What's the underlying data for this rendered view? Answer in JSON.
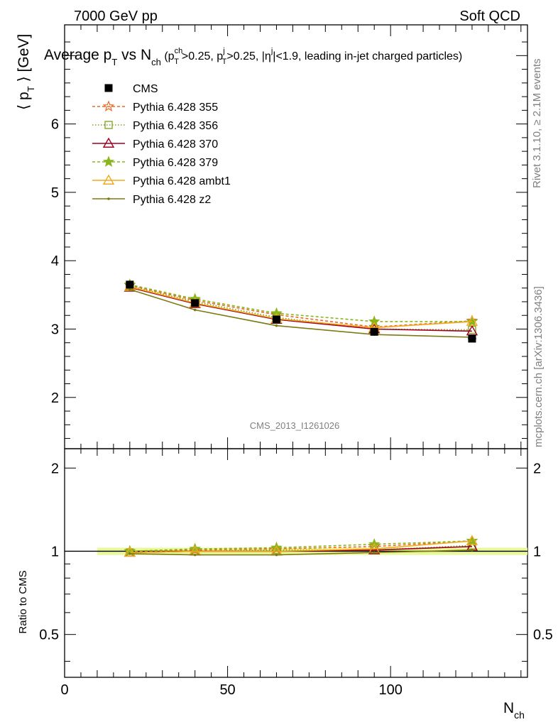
{
  "header": {
    "left": "7000 GeV pp",
    "right": "Soft QCD"
  },
  "title": {
    "main_a": "Average p",
    "main_a_sub": "T",
    "main_b": " vs N",
    "main_b_sub": "ch",
    "cuts_open": " (p",
    "cuts_ch_sup": "ch",
    "cuts_ch_sub": "T",
    "cuts_mid1": ">0.25, p",
    "cuts_j_sup": "j",
    "cuts_j_sub": "T",
    "cuts_mid2": ">0.25, |η",
    "cuts_eta_sup": "j",
    "cuts_end": "|<1.9, leading in-jet charged particles)"
  },
  "side_labels": {
    "rivet": "Rivet 3.1.10, ≥ 2.1M events",
    "mcplots": "mcplots.cern.ch [arXiv:1306.3436]"
  },
  "watermark": "CMS_2013_I1261026",
  "axes": {
    "ylabel_main": "⟨ p",
    "ylabel_main_sub": "T",
    "ylabel_main_end": " ⟩ [GeV]",
    "ylabel_ratio": "Ratio to CMS",
    "xlabel": "N",
    "xlabel_sub": "ch"
  },
  "chart_data": [
    {
      "type": "line",
      "panel": "main",
      "xlim": [
        0,
        142
      ],
      "ylim": [
        1.25,
        7.45
      ],
      "x_ticks": [
        0,
        50,
        100
      ],
      "y_ticks": [
        2,
        3,
        4,
        5,
        6
      ],
      "legend_position": "top-left",
      "x": [
        20,
        40,
        65,
        95,
        125
      ],
      "data": {
        "name": "CMS",
        "values": [
          3.65,
          3.38,
          3.14,
          2.96,
          2.86
        ],
        "color": "#000000",
        "marker": "square"
      },
      "series": [
        {
          "name": "Pythia 6.428 355",
          "values": [
            3.64,
            3.42,
            3.21,
            3.03,
            3.12
          ],
          "color": "#ee6820",
          "dash": "4,3",
          "marker": "star-open"
        },
        {
          "name": "Pythia 6.428 356",
          "values": [
            3.63,
            3.4,
            3.17,
            3.0,
            2.99
          ],
          "color": "#7ca019",
          "dash": "1.5,2.5",
          "marker": "square-open"
        },
        {
          "name": "Pythia 6.428 370",
          "values": [
            3.61,
            3.37,
            3.14,
            3.0,
            2.97
          ],
          "color": "#a0001e",
          "dash": "",
          "marker": "triangle-open"
        },
        {
          "name": "Pythia 6.428 379",
          "values": [
            3.65,
            3.44,
            3.23,
            3.11,
            3.11
          ],
          "color": "#8ab61a",
          "dash": "4,3",
          "marker": "star"
        },
        {
          "name": "Pythia 6.428 ambt1",
          "values": [
            3.62,
            3.38,
            3.15,
            3.02,
            3.11
          ],
          "color": "#f2a81e",
          "dash": "",
          "marker": "triangle-open"
        },
        {
          "name": "Pythia 6.428 z2",
          "values": [
            3.58,
            3.28,
            3.05,
            2.92,
            2.88
          ],
          "color": "#7b7b12",
          "dash": "",
          "marker": "dot"
        }
      ]
    },
    {
      "type": "line",
      "panel": "ratio",
      "xlim": [
        0,
        142
      ],
      "ylim": [
        0.35,
        2.35
      ],
      "y_ticks": [
        0.5,
        1,
        2
      ],
      "x": [
        20,
        40,
        65,
        95,
        125
      ],
      "band": {
        "x_range": [
          10,
          142
        ],
        "half_width": 0.03,
        "color": "#e8f89a"
      },
      "series": [
        {
          "name": "Pythia 6.428 355",
          "values": [
            1.0,
            1.01,
            1.02,
            1.04,
            1.09
          ]
        },
        {
          "name": "Pythia 6.428 356",
          "values": [
            0.99,
            1.0,
            1.01,
            1.01,
            1.05
          ]
        },
        {
          "name": "Pythia 6.428 370",
          "values": [
            0.99,
            1.0,
            1.0,
            1.01,
            1.04
          ]
        },
        {
          "name": "Pythia 6.428 379",
          "values": [
            1.0,
            1.02,
            1.03,
            1.06,
            1.09
          ]
        },
        {
          "name": "Pythia 6.428 ambt1",
          "values": [
            0.99,
            1.0,
            1.0,
            1.02,
            1.09
          ]
        },
        {
          "name": "Pythia 6.428 z2",
          "values": [
            0.98,
            0.97,
            0.97,
            0.99,
            1.01
          ]
        }
      ]
    }
  ]
}
